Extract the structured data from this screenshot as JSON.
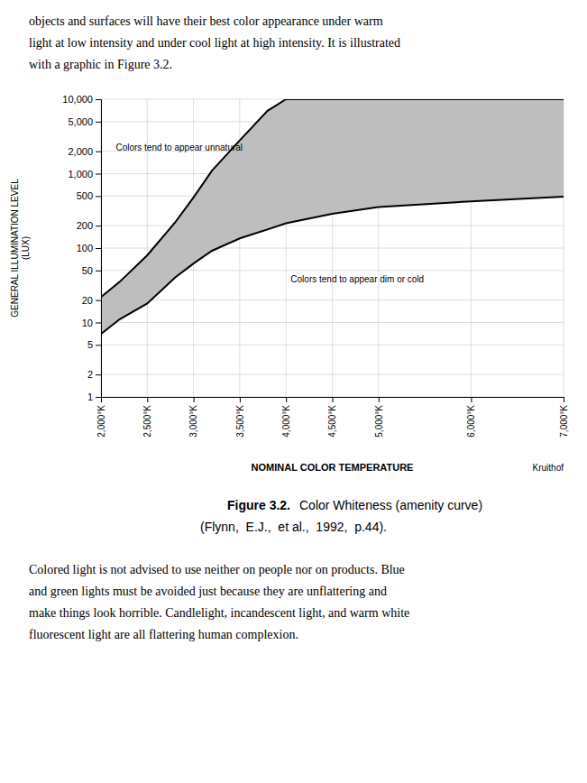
{
  "chart_data": {
    "type": "area",
    "x": [
      2000,
      2200,
      2500,
      2800,
      3000,
      3200,
      3500,
      3800,
      4000,
      4500,
      5000,
      6000,
      7000
    ],
    "series": [
      {
        "values": [
          22,
          35,
          80,
          220,
          480,
          1100,
          2800,
          7000,
          10000,
          10000,
          10000,
          10000,
          10000
        ],
        "color": "#000000"
      },
      {
        "values": [
          7,
          11,
          18,
          40,
          62,
          92,
          135,
          178,
          215,
          288,
          355,
          425,
          490
        ],
        "color": "#000000"
      }
    ],
    "color": "#bebebe",
    "xlabel": "NOMINAL COLOR TEMPERATURE",
    "ylabel": "GENERAL ILLUMINATION LEVEL\n(LUX)",
    "source": "Kruithof",
    "annotations": [
      {
        "text": "Colors tend to appear unnatural",
        "x": 2160,
        "y": 2200
      },
      {
        "text": "Colors tend to appear dim or cold",
        "x": 4050,
        "y": 38
      }
    ],
    "xlim": [
      2000,
      7000
    ],
    "ylim": [
      1,
      10000
    ],
    "xticks": [
      {
        "value": 2000,
        "label": "2,000°K"
      },
      {
        "value": 2500,
        "label": "2,500°K"
      },
      {
        "value": 3000,
        "label": "3,000°K"
      },
      {
        "value": 3500,
        "label": "3,500°K"
      },
      {
        "value": 4000,
        "label": "4,000°K"
      },
      {
        "value": 4500,
        "label": "4,500°K"
      },
      {
        "value": 5000,
        "label": "5,000°K"
      },
      {
        "value": 6000,
        "label": "6,000°K"
      },
      {
        "value": 7000,
        "label": "7,000°K"
      }
    ],
    "yticks": [
      1,
      2,
      5,
      10,
      20,
      50,
      100,
      200,
      500,
      {
        "value": 1000,
        "label": "1,000"
      },
      {
        "value": 2000,
        "label": "2,000"
      },
      {
        "value": 5000,
        "label": "5,000"
      },
      {
        "value": 10000,
        "label": "10,000"
      }
    ],
    "log": "y",
    "grid": true
  },
  "page": {
    "text_top": [
      "objects and surfaces will have their best color appearance under warm",
      "light at low intensity and under cool light at high intensity. It is illustrated",
      "with a graphic in Figure 3.2."
    ],
    "caption_label": "Figure 3.2.",
    "caption": "Color Whiteness (amenity curve)",
    "caption_source": "(Flynn,  E.J.,  et al.,  1992,  p.44).",
    "text_bottom": [
      "Colored light is not advised to use neither on people nor on products. Blue",
      "and green lights must be avoided just because they are unflattering and",
      "make things look horrible. Candlelight, incandescent light, and warm white",
      "fluorescent light are all flattering human complexion."
    ]
  }
}
